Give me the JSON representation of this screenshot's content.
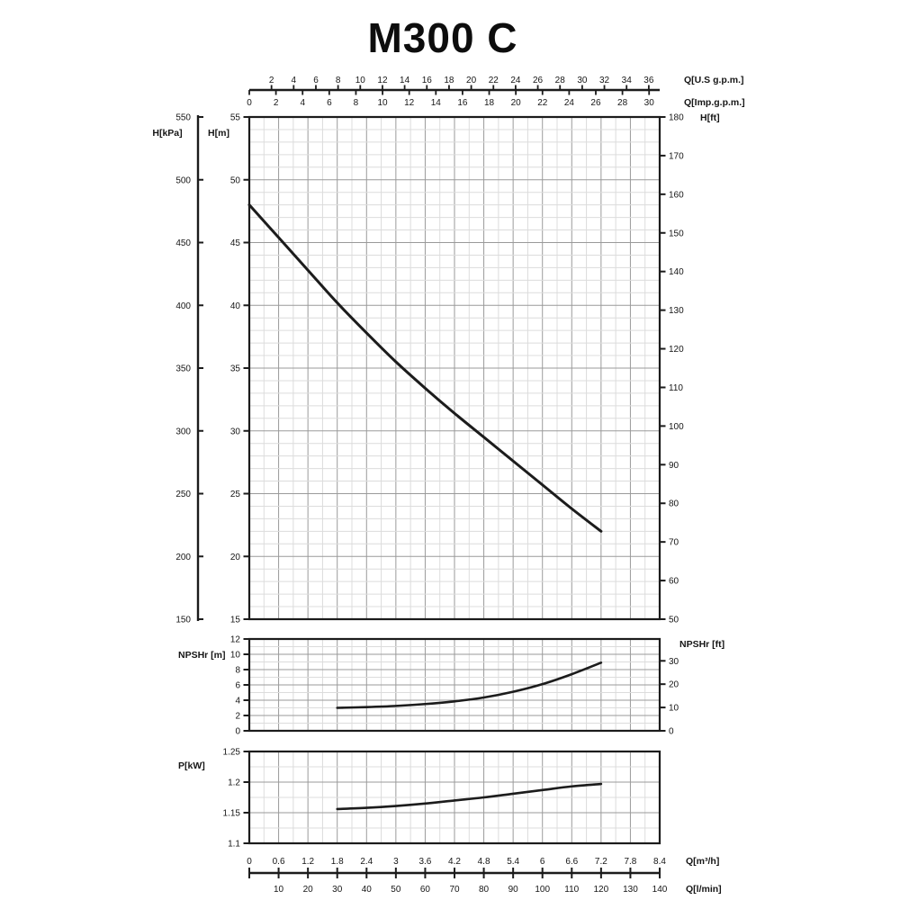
{
  "title": "M300 C",
  "colors": {
    "ink": "#1a1a1a",
    "grid_major": "#9a9a9a",
    "grid_minor": "#dcdcdc",
    "background": "#ffffff"
  },
  "top_axes": {
    "us_gpm": {
      "label": "Q[U.S g.p.m.]",
      "ticks": [
        2,
        4,
        6,
        8,
        10,
        12,
        14,
        16,
        18,
        20,
        22,
        24,
        26,
        28,
        30,
        32,
        34,
        36
      ]
    },
    "imp_gpm": {
      "label": "Q[Imp.g.p.m.]",
      "ticks": [
        0,
        2,
        4,
        6,
        8,
        10,
        12,
        14,
        16,
        18,
        20,
        22,
        24,
        26,
        28,
        30
      ]
    }
  },
  "left_axes": {
    "kpa": {
      "label": "H[kPa]",
      "ticks": [
        550,
        500,
        450,
        400,
        350,
        300,
        250,
        200,
        150
      ]
    },
    "meters": {
      "label": "H[m]",
      "ticks": [
        55,
        50,
        45,
        40,
        35,
        30,
        25,
        20,
        15
      ]
    }
  },
  "right_axis": {
    "label": "H[ft]",
    "ticks": [
      180,
      170,
      160,
      150,
      140,
      130,
      120,
      110,
      100,
      90,
      80,
      70,
      60,
      50
    ]
  },
  "npsh_axes": {
    "left_label": "NPSHr [m]",
    "right_label": "NPSHr [ft]",
    "left_ticks": [
      0,
      2,
      4,
      6,
      8,
      10,
      12
    ],
    "right_ticks": [
      0,
      10,
      20,
      30
    ]
  },
  "power_axis": {
    "label": "P[kW]",
    "tick_labels": [
      "1.1",
      "1.15",
      "1.2",
      "1.25"
    ],
    "tick_values": [
      1.1,
      1.15,
      1.2,
      1.25
    ]
  },
  "bottom_axes": {
    "m3h": {
      "label": "Q[m³/h]",
      "tick_labels": [
        "0",
        "0.6",
        "1.2",
        "1.8",
        "2.4",
        "3",
        "3.6",
        "4.2",
        "4.8",
        "5.4",
        "6",
        "6.6",
        "7.2",
        "7.8",
        "8.4"
      ],
      "tick_values": [
        0,
        0.6,
        1.2,
        1.8,
        2.4,
        3,
        3.6,
        4.2,
        4.8,
        5.4,
        6,
        6.6,
        7.2,
        7.8,
        8.4
      ]
    },
    "lmin": {
      "label": "Q[l/min]",
      "ticks": [
        10,
        20,
        30,
        40,
        50,
        60,
        70,
        80,
        90,
        100,
        110,
        120,
        130,
        140
      ]
    }
  },
  "chart_data": [
    {
      "type": "line",
      "name": "head-curve",
      "title": "M300 C head curve",
      "xlabel": "Q[m³/h]",
      "ylabel": "H[m]",
      "xlim": [
        0,
        8.4
      ],
      "ylim": [
        15,
        55
      ],
      "grid": true,
      "legend": "none",
      "x": [
        0,
        0.6,
        1.2,
        1.8,
        2.4,
        3.0,
        3.6,
        4.2,
        4.8,
        5.4,
        6.0,
        6.6,
        7.2
      ],
      "y": [
        48.0,
        45.4,
        42.8,
        40.2,
        37.8,
        35.5,
        33.4,
        31.4,
        29.5,
        27.6,
        25.7,
        23.8,
        22.0
      ]
    },
    {
      "type": "line",
      "name": "npshr-curve",
      "title": "NPSHr curve",
      "xlabel": "Q[m³/h]",
      "ylabel": "NPSHr [m]",
      "xlim": [
        0,
        8.4
      ],
      "ylim": [
        0,
        12
      ],
      "grid": true,
      "legend": "none",
      "x": [
        1.8,
        2.4,
        3.0,
        3.6,
        4.2,
        4.8,
        5.4,
        6.0,
        6.6,
        7.2
      ],
      "y": [
        3.0,
        3.1,
        3.25,
        3.5,
        3.85,
        4.35,
        5.1,
        6.1,
        7.4,
        8.9
      ]
    },
    {
      "type": "line",
      "name": "power-curve",
      "title": "Power curve",
      "xlabel": "Q[m³/h]",
      "ylabel": "P[kW]",
      "xlim": [
        0,
        8.4
      ],
      "ylim": [
        1.1,
        1.25
      ],
      "grid": true,
      "legend": "none",
      "x": [
        1.8,
        2.4,
        3.0,
        3.6,
        4.2,
        4.8,
        5.4,
        6.0,
        6.6,
        7.2
      ],
      "y": [
        1.156,
        1.158,
        1.161,
        1.165,
        1.17,
        1.175,
        1.181,
        1.187,
        1.193,
        1.197
      ]
    }
  ]
}
